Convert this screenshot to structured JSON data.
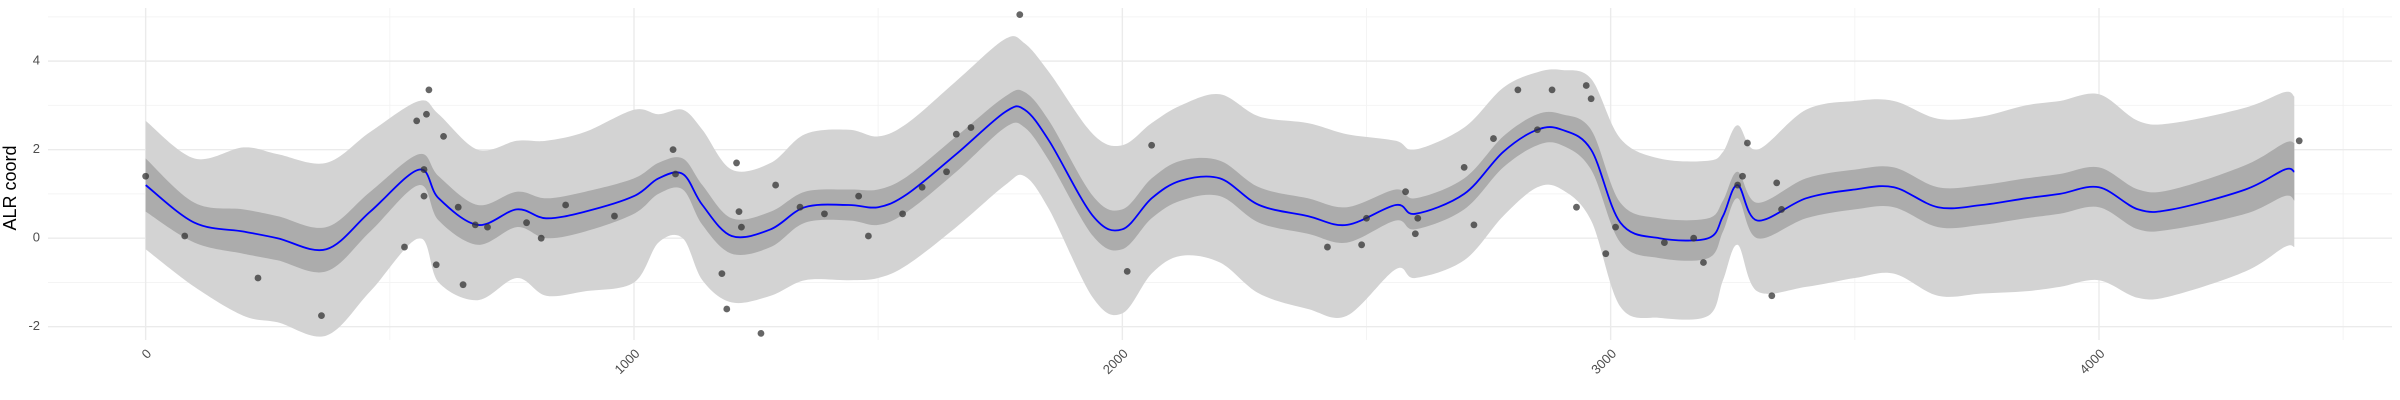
{
  "chart_data": {
    "type": "line",
    "title": "",
    "xlabel": "",
    "ylabel": "ALR coord",
    "xlim": [
      -200,
      4600
    ],
    "ylim": [
      -2.3,
      5.2
    ],
    "x_ticks": [
      0,
      1000,
      2000,
      3000,
      4000
    ],
    "x_tick_labels": [
      "0",
      "1000",
      "2000",
      "3000",
      "4000"
    ],
    "y_ticks": [
      -2,
      0,
      2,
      4
    ],
    "y_tick_labels": [
      "-2",
      "0",
      "2",
      "4"
    ],
    "grid": true,
    "colors": {
      "line": "#0000ff",
      "inner_band": "#acacac",
      "outer_band": "#d3d3d3",
      "points": "#333333",
      "grid_major": "#ebebeb",
      "grid_minor": "#f4f4f4"
    },
    "series": [
      {
        "kind": "smooth",
        "x": [
          0,
          100,
          200,
          270,
          370,
          460,
          560,
          600,
          680,
          760,
          820,
          900,
          1000,
          1050,
          1100,
          1140,
          1200,
          1280,
          1350,
          1440,
          1500,
          1560,
          1660,
          1760,
          1800,
          1850,
          1940,
          2000,
          2060,
          2120,
          2200,
          2280,
          2380,
          2460,
          2560,
          2600,
          2700,
          2780,
          2850,
          2900,
          2960,
          3020,
          3100,
          3200,
          3230,
          3260,
          3300,
          3400,
          3500,
          3580,
          3670,
          3760,
          3850,
          3920,
          4000,
          4080,
          4150,
          4300,
          4380,
          4400
        ],
        "y": [
          1.2,
          0.35,
          0.15,
          0.0,
          -0.25,
          0.6,
          1.55,
          0.9,
          0.3,
          0.65,
          0.45,
          0.6,
          0.95,
          1.35,
          1.45,
          0.75,
          0.05,
          0.2,
          0.7,
          0.75,
          0.7,
          1.0,
          1.9,
          2.85,
          2.9,
          2.2,
          0.5,
          0.2,
          0.9,
          1.3,
          1.35,
          0.75,
          0.5,
          0.3,
          0.75,
          0.55,
          1.0,
          1.95,
          2.45,
          2.45,
          2.0,
          0.35,
          0.0,
          0.0,
          0.5,
          1.2,
          0.4,
          0.9,
          1.1,
          1.15,
          0.7,
          0.75,
          0.9,
          1.0,
          1.15,
          0.65,
          0.65,
          1.1,
          1.55,
          1.5
        ],
        "inner": [
          0.6,
          0.45,
          0.5,
          0.5,
          0.5,
          0.45,
          0.35,
          0.5,
          0.45,
          0.4,
          0.45,
          0.45,
          0.4,
          0.35,
          0.35,
          0.45,
          0.4,
          0.4,
          0.35,
          0.35,
          0.4,
          0.4,
          0.4,
          0.35,
          0.4,
          0.45,
          0.45,
          0.45,
          0.45,
          0.45,
          0.4,
          0.4,
          0.4,
          0.4,
          0.35,
          0.35,
          0.35,
          0.35,
          0.35,
          0.35,
          0.45,
          0.45,
          0.45,
          0.45,
          0.35,
          0.3,
          0.4,
          0.45,
          0.45,
          0.45,
          0.45,
          0.45,
          0.45,
          0.45,
          0.45,
          0.45,
          0.45,
          0.55,
          0.6,
          0.65
        ],
        "outer": [
          1.45,
          1.45,
          1.9,
          1.9,
          1.95,
          1.8,
          1.55,
          1.9,
          1.7,
          1.55,
          1.75,
          1.8,
          1.95,
          1.45,
          1.45,
          1.7,
          1.5,
          1.5,
          1.65,
          1.7,
          1.6,
          1.6,
          1.65,
          1.65,
          1.5,
          1.55,
          1.85,
          1.9,
          1.7,
          1.7,
          1.9,
          2.0,
          2.1,
          2.05,
          1.45,
          1.45,
          1.5,
          1.45,
          1.3,
          1.35,
          1.6,
          1.9,
          1.8,
          1.75,
          1.45,
          1.35,
          1.6,
          2.0,
          2.0,
          1.95,
          2.0,
          2.0,
          2.1,
          2.1,
          2.1,
          2.0,
          1.95,
          1.85,
          1.75,
          1.7
        ]
      }
    ],
    "points": [
      {
        "x": 0,
        "y": 1.4
      },
      {
        "x": 80,
        "y": 0.05
      },
      {
        "x": 230,
        "y": -0.9
      },
      {
        "x": 360,
        "y": -1.75
      },
      {
        "x": 530,
        "y": -0.2
      },
      {
        "x": 555,
        "y": 2.65
      },
      {
        "x": 570,
        "y": 0.95
      },
      {
        "x": 570,
        "y": 1.55
      },
      {
        "x": 575,
        "y": 2.8
      },
      {
        "x": 580,
        "y": 3.35
      },
      {
        "x": 595,
        "y": -0.6
      },
      {
        "x": 610,
        "y": 2.3
      },
      {
        "x": 640,
        "y": 0.7
      },
      {
        "x": 650,
        "y": -1.05
      },
      {
        "x": 675,
        "y": 0.3
      },
      {
        "x": 700,
        "y": 0.25
      },
      {
        "x": 780,
        "y": 0.35
      },
      {
        "x": 810,
        "y": 0.0
      },
      {
        "x": 860,
        "y": 0.75
      },
      {
        "x": 960,
        "y": 0.5
      },
      {
        "x": 1080,
        "y": 2.0
      },
      {
        "x": 1085,
        "y": 1.45
      },
      {
        "x": 1180,
        "y": -0.8
      },
      {
        "x": 1190,
        "y": -1.6
      },
      {
        "x": 1210,
        "y": 1.7
      },
      {
        "x": 1215,
        "y": 0.6
      },
      {
        "x": 1220,
        "y": 0.25
      },
      {
        "x": 1260,
        "y": -2.15
      },
      {
        "x": 1290,
        "y": 1.2
      },
      {
        "x": 1340,
        "y": 0.7
      },
      {
        "x": 1390,
        "y": 0.55
      },
      {
        "x": 1460,
        "y": 0.95
      },
      {
        "x": 1480,
        "y": 0.05
      },
      {
        "x": 1550,
        "y": 0.55
      },
      {
        "x": 1590,
        "y": 1.15
      },
      {
        "x": 1640,
        "y": 1.5
      },
      {
        "x": 1660,
        "y": 2.35
      },
      {
        "x": 1690,
        "y": 2.5
      },
      {
        "x": 1790,
        "y": 5.05
      },
      {
        "x": 2010,
        "y": -0.75
      },
      {
        "x": 2060,
        "y": 2.1
      },
      {
        "x": 2420,
        "y": -0.2
      },
      {
        "x": 2490,
        "y": -0.15
      },
      {
        "x": 2500,
        "y": 0.45
      },
      {
        "x": 2580,
        "y": 1.05
      },
      {
        "x": 2600,
        "y": 0.1
      },
      {
        "x": 2605,
        "y": 0.45
      },
      {
        "x": 2700,
        "y": 1.6
      },
      {
        "x": 2720,
        "y": 0.3
      },
      {
        "x": 2760,
        "y": 2.25
      },
      {
        "x": 2810,
        "y": 3.35
      },
      {
        "x": 2850,
        "y": 2.45
      },
      {
        "x": 2880,
        "y": 3.35
      },
      {
        "x": 2930,
        "y": 0.7
      },
      {
        "x": 2950,
        "y": 3.45
      },
      {
        "x": 2960,
        "y": 3.15
      },
      {
        "x": 2990,
        "y": -0.35
      },
      {
        "x": 3010,
        "y": 0.25
      },
      {
        "x": 3110,
        "y": -0.1
      },
      {
        "x": 3170,
        "y": 0.0
      },
      {
        "x": 3190,
        "y": -0.55
      },
      {
        "x": 3260,
        "y": 1.2
      },
      {
        "x": 3270,
        "y": 1.4
      },
      {
        "x": 3280,
        "y": 2.15
      },
      {
        "x": 3330,
        "y": -1.3
      },
      {
        "x": 3340,
        "y": 1.25
      },
      {
        "x": 3350,
        "y": 0.65
      },
      {
        "x": 4410,
        "y": 2.2
      }
    ]
  }
}
